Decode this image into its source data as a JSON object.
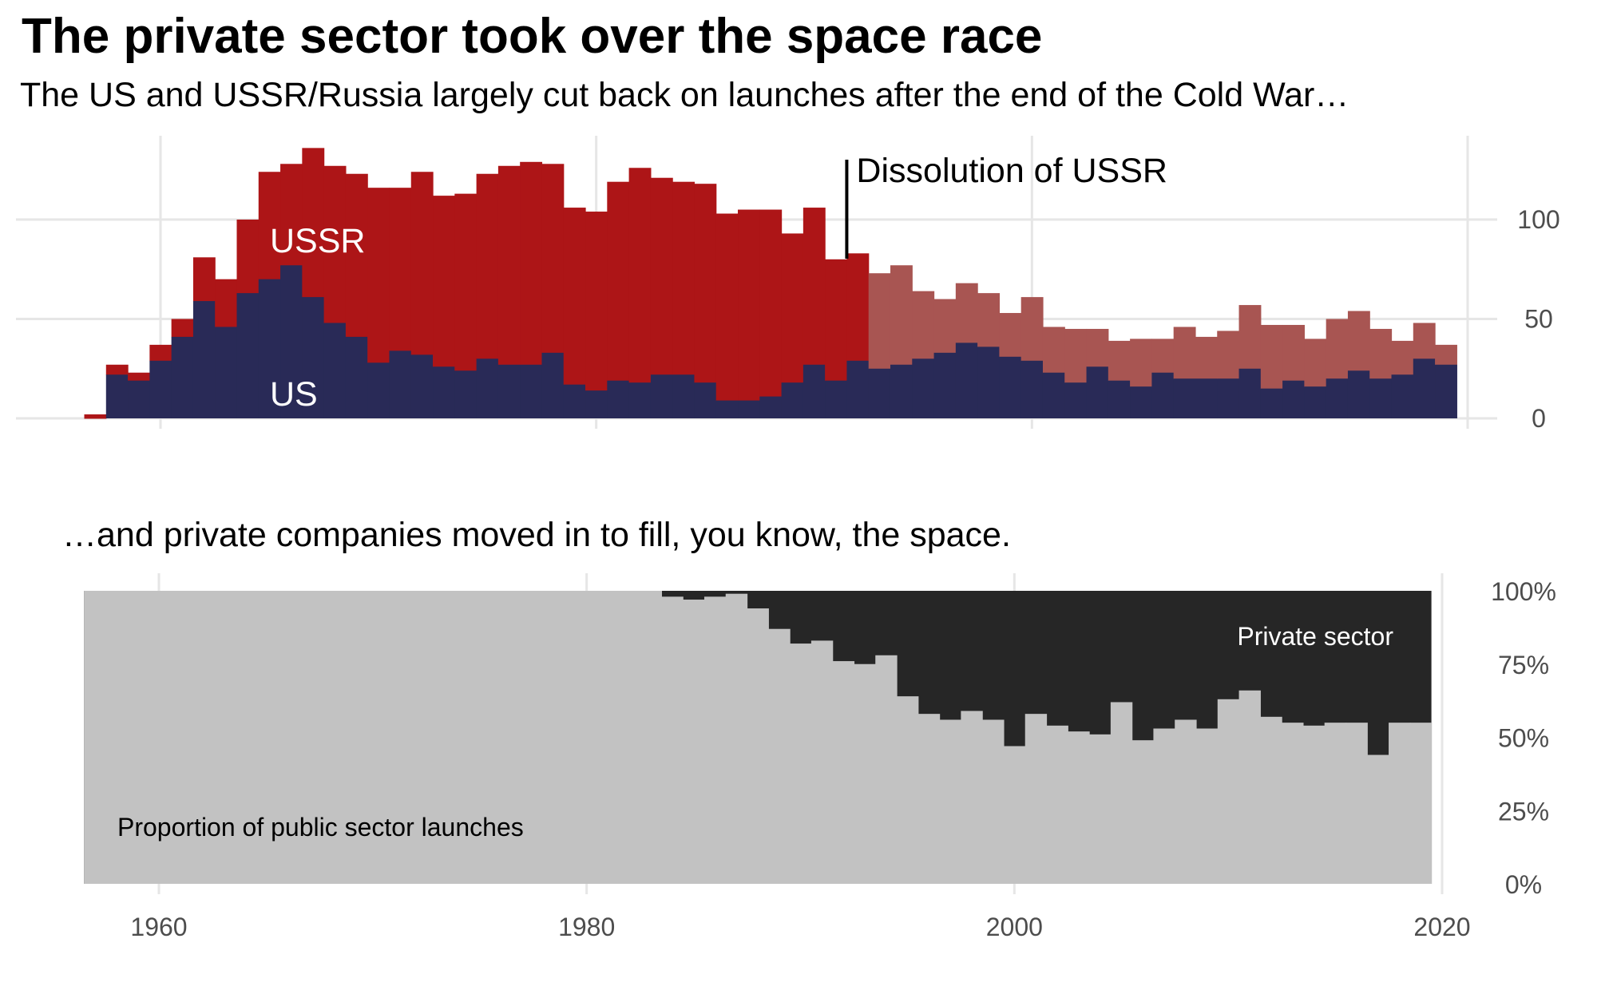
{
  "title": "The private sector took over the space race",
  "subtitle": "The US and USSR/Russia largely cut back on launches after the end of the Cold War…",
  "subtitle_bottom": "…and private companies moved in to fill, you know, the space.",
  "colors": {
    "ussr": "#ad1517",
    "russia": "#a85552",
    "us": "#292a57",
    "private": "#262626",
    "public": "#c2c2c2",
    "grid": "#e6e6e6"
  },
  "chart_data": [
    {
      "type": "area",
      "stacked": true,
      "step": true,
      "x": [
        1957,
        1958,
        1959,
        1960,
        1961,
        1962,
        1963,
        1964,
        1965,
        1966,
        1967,
        1968,
        1969,
        1970,
        1971,
        1972,
        1973,
        1974,
        1975,
        1976,
        1977,
        1978,
        1979,
        1980,
        1981,
        1982,
        1983,
        1984,
        1985,
        1986,
        1987,
        1988,
        1989,
        1990,
        1991,
        1992,
        1993,
        1994,
        1995,
        1996,
        1997,
        1998,
        1999,
        2000,
        2001,
        2002,
        2003,
        2004,
        2005,
        2006,
        2007,
        2008,
        2009,
        2010,
        2011,
        2012,
        2013,
        2014,
        2015,
        2016,
        2017,
        2018,
        2019
      ],
      "series": [
        {
          "name": "US",
          "values": [
            0,
            22,
            19,
            29,
            41,
            59,
            46,
            63,
            70,
            77,
            61,
            48,
            41,
            28,
            34,
            32,
            26,
            24,
            30,
            27,
            27,
            33,
            17,
            14,
            19,
            18,
            22,
            22,
            18,
            9,
            9,
            11,
            18,
            27,
            19,
            29,
            25,
            27,
            30,
            33,
            38,
            36,
            31,
            29,
            23,
            18,
            26,
            19,
            16,
            23,
            20,
            20,
            20,
            25,
            15,
            19,
            16,
            20,
            24,
            20,
            22,
            30,
            27
          ]
        },
        {
          "name": "USSR",
          "values": [
            2,
            5,
            4,
            8,
            9,
            22,
            24,
            37,
            54,
            51,
            75,
            79,
            82,
            88,
            82,
            92,
            86,
            89,
            93,
            100,
            102,
            95,
            89,
            90,
            100,
            108,
            99,
            97,
            100,
            94,
            96,
            94,
            75,
            79,
            61,
            54,
            null,
            null,
            null,
            null,
            null,
            null,
            null,
            null,
            null,
            null,
            null,
            null,
            null,
            null,
            null,
            null,
            null,
            null,
            null,
            null,
            null,
            null,
            null,
            null,
            null,
            null,
            null
          ]
        },
        {
          "name": "Russia",
          "values": [
            null,
            null,
            null,
            null,
            null,
            null,
            null,
            null,
            null,
            null,
            null,
            null,
            null,
            null,
            null,
            null,
            null,
            null,
            null,
            null,
            null,
            null,
            null,
            null,
            null,
            null,
            null,
            null,
            null,
            null,
            null,
            null,
            null,
            null,
            null,
            56,
            48,
            50,
            34,
            27,
            30,
            27,
            22,
            32,
            23,
            27,
            19,
            20,
            24,
            17,
            26,
            21,
            24,
            32,
            32,
            28,
            24,
            30,
            30,
            25,
            17,
            18,
            10
          ]
        }
      ],
      "labels": [
        "USSR",
        "US"
      ],
      "annotation": {
        "x": 1991.5,
        "text": "Dissolution of USSR"
      },
      "xlim": [
        1953,
        2021
      ],
      "ylim": [
        0,
        135
      ],
      "y_ticks": [
        "0",
        "50",
        "100"
      ],
      "y_tick_values": [
        0,
        50,
        100
      ],
      "y_axis_position": "right",
      "grid": true
    },
    {
      "type": "area",
      "step": true,
      "x": [
        1957,
        1958,
        1959,
        1960,
        1961,
        1962,
        1963,
        1964,
        1965,
        1966,
        1967,
        1968,
        1969,
        1970,
        1971,
        1972,
        1973,
        1974,
        1975,
        1976,
        1977,
        1978,
        1979,
        1980,
        1981,
        1982,
        1983,
        1984,
        1985,
        1986,
        1987,
        1988,
        1989,
        1990,
        1991,
        1992,
        1993,
        1994,
        1995,
        1996,
        1997,
        1998,
        1999,
        2000,
        2001,
        2002,
        2003,
        2004,
        2005,
        2006,
        2007,
        2008,
        2009,
        2010,
        2011,
        2012,
        2013,
        2014,
        2015,
        2016,
        2017,
        2018,
        2019
      ],
      "series": [
        {
          "name": "Proportion of public sector launches",
          "values": [
            1,
            1,
            1,
            1,
            1,
            1,
            1,
            1,
            1,
            1,
            1,
            1,
            1,
            1,
            1,
            1,
            1,
            1,
            1,
            1,
            1,
            1,
            1,
            1,
            1,
            1,
            1,
            0.98,
            0.97,
            0.98,
            0.99,
            0.94,
            0.87,
            0.82,
            0.83,
            0.76,
            0.75,
            0.78,
            0.64,
            0.58,
            0.56,
            0.59,
            0.56,
            0.47,
            0.58,
            0.54,
            0.52,
            0.51,
            0.62,
            0.49,
            0.53,
            0.56,
            0.53,
            0.63,
            0.66,
            0.57,
            0.55,
            0.54,
            0.55,
            0.55,
            0.44,
            0.55,
            0.55
          ]
        }
      ],
      "labels": [
        "Private sector",
        "Proportion of public sector launches"
      ],
      "xlim": [
        1953,
        2021
      ],
      "ylim": [
        0,
        1
      ],
      "y_ticks": [
        "0%",
        "25%",
        "50%",
        "75%",
        "100%"
      ],
      "y_tick_values": [
        0,
        0.25,
        0.5,
        0.75,
        1
      ],
      "y_axis_position": "right",
      "x_ticks": [
        "1960",
        "1980",
        "2000",
        "2020"
      ],
      "x_tick_values": [
        1960,
        1980,
        2000,
        2020
      ],
      "grid": true
    }
  ]
}
